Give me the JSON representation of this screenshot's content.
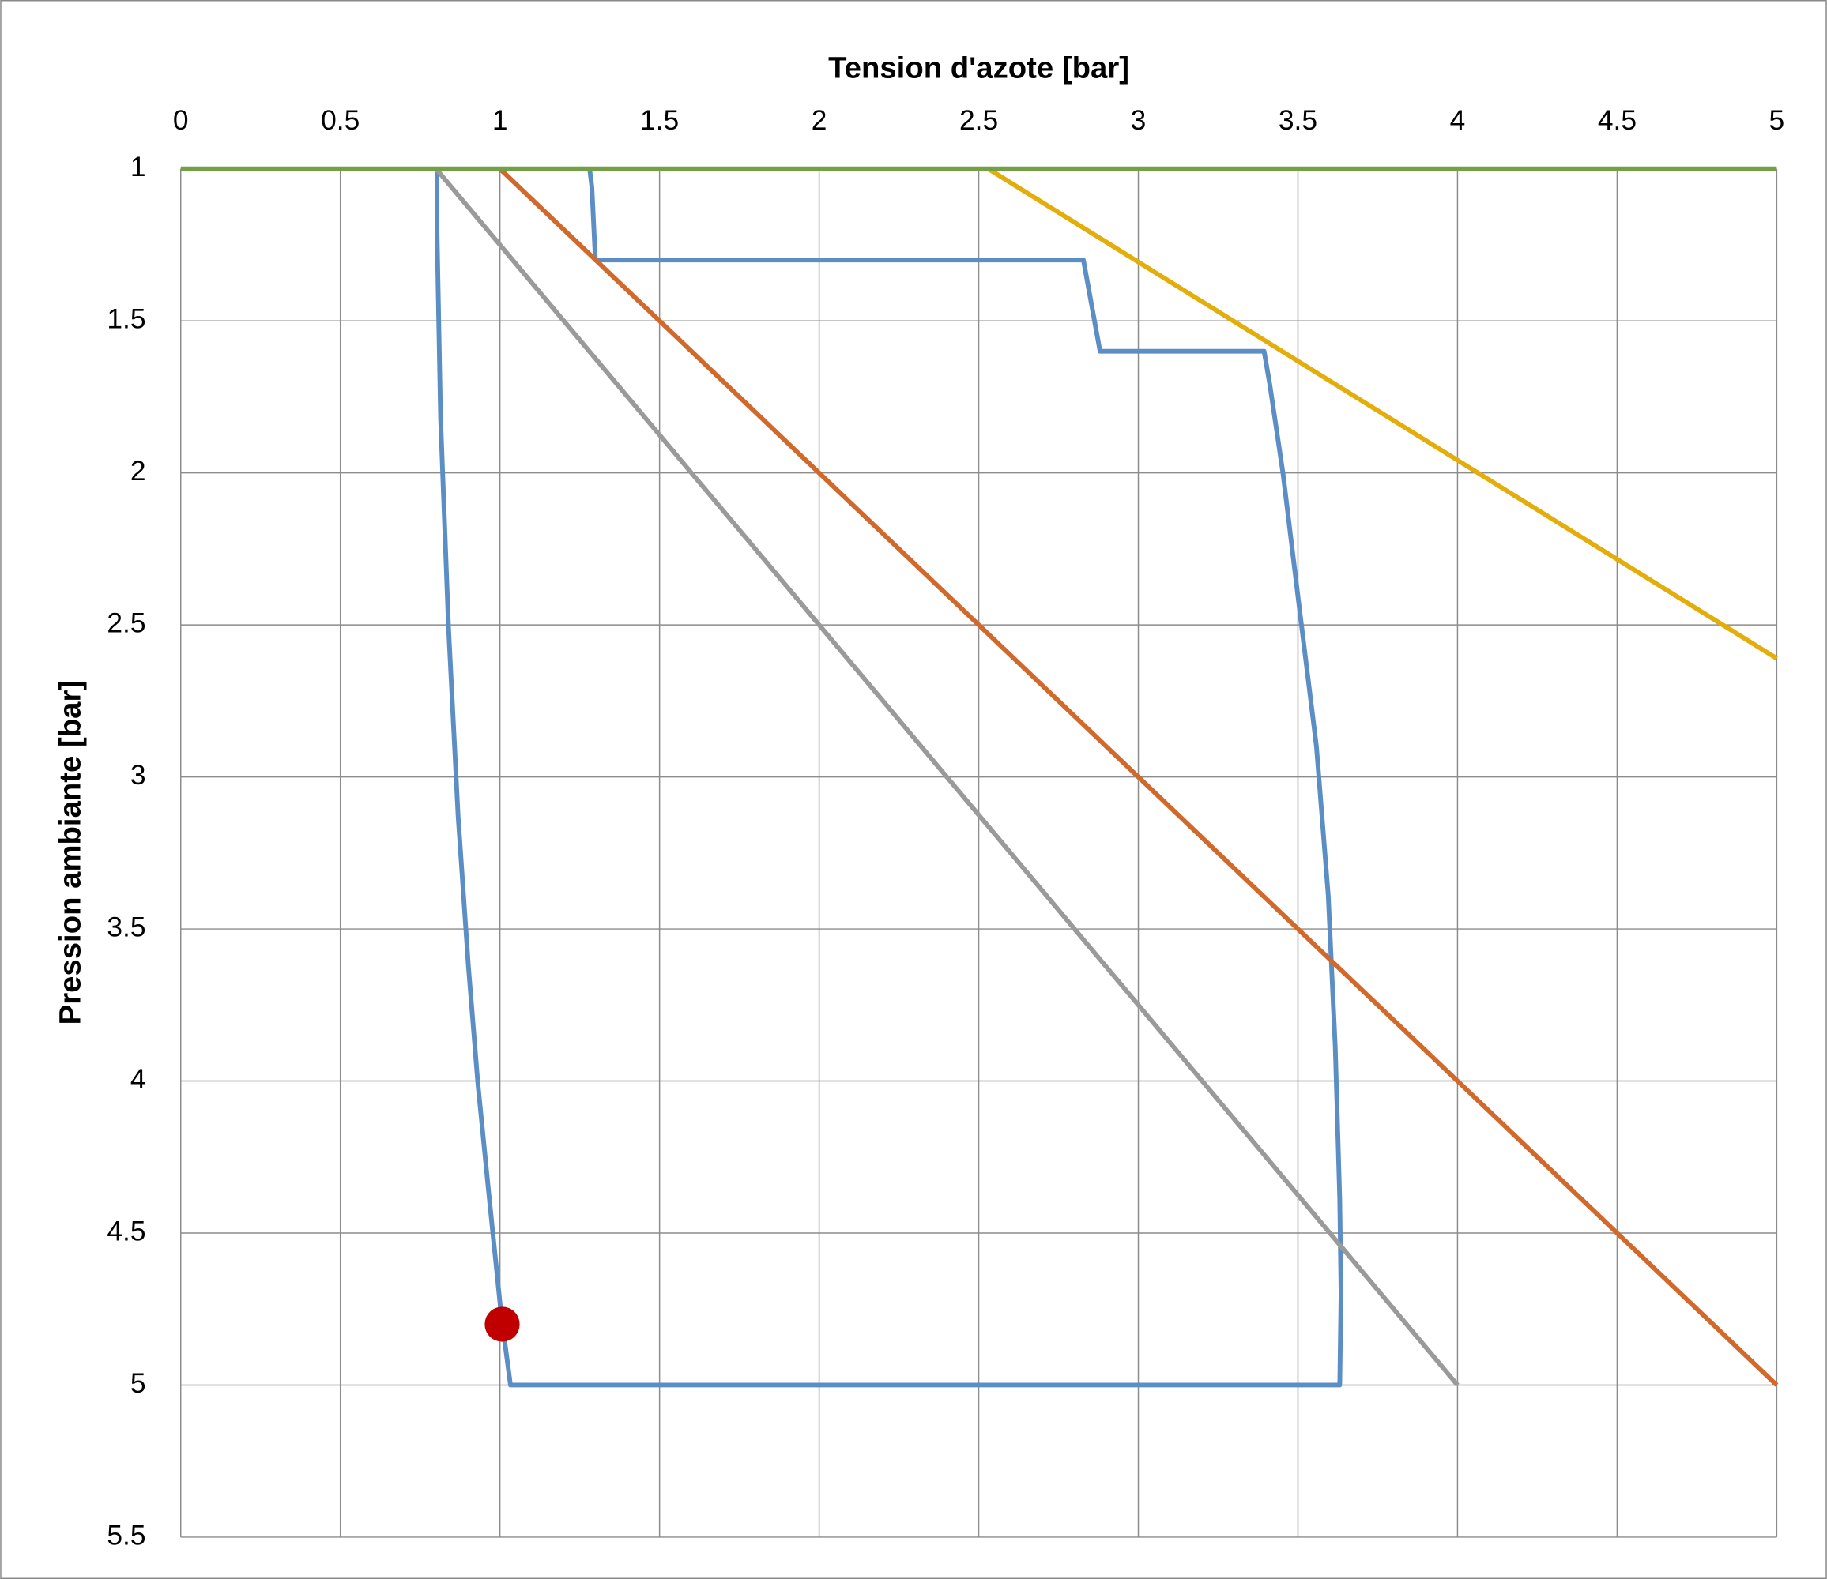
{
  "chart_data": {
    "type": "line",
    "x_label": "Tension d'azote [bar]",
    "y_label": "Pression ambiante [bar]",
    "xlim": [
      0,
      5
    ],
    "xticks": [
      0,
      0.5,
      1,
      1.5,
      2,
      2.5,
      3,
      3.5,
      4,
      4.5,
      5
    ],
    "ylim": [
      1,
      5.5
    ],
    "yticks": [
      1,
      1.5,
      2,
      2.5,
      3,
      3.5,
      4,
      4.5,
      5,
      5.5
    ],
    "y_inverted": true,
    "x_axis_position": "top",
    "grid": true,
    "series": [
      {
        "color": "#5b8ec4",
        "mode": "line",
        "x": [
          1.281,
          1.288,
          1.299,
          2.828,
          2.854,
          2.88,
          3.394,
          3.412,
          3.453,
          3.504,
          3.558,
          3.595,
          3.617,
          3.631,
          3.635,
          3.631,
          1.033,
          1.004,
          0.967,
          0.931,
          0.901,
          0.869,
          0.839,
          0.814,
          0.803,
          0.803
        ],
        "values": [
          1,
          1.06,
          1.3,
          1.3,
          1.45,
          1.6,
          1.6,
          1.71,
          2.0,
          2.44,
          2.9,
          3.39,
          3.89,
          4.39,
          4.7,
          5,
          5,
          4.77,
          4.39,
          4.01,
          3.62,
          3.13,
          2.51,
          1.82,
          1.21,
          1
        ]
      },
      {
        "color": "#9a9a9a",
        "mode": "line",
        "x": [
          0.8,
          4
        ],
        "values": [
          1,
          5
        ]
      },
      {
        "color": "#d2692c",
        "mode": "line",
        "x": [
          1,
          5
        ],
        "values": [
          1,
          5
        ]
      },
      {
        "color": "#e3ae0c",
        "mode": "line",
        "x": [
          2.53,
          5
        ],
        "values": [
          1,
          2.61
        ]
      },
      {
        "color": "#72a044",
        "mode": "line",
        "x": [
          0,
          5
        ],
        "values": [
          1,
          1
        ]
      },
      {
        "color": "#c00000",
        "mode": "markers",
        "x": [
          1.007
        ],
        "values": [
          4.8
        ]
      }
    ]
  }
}
